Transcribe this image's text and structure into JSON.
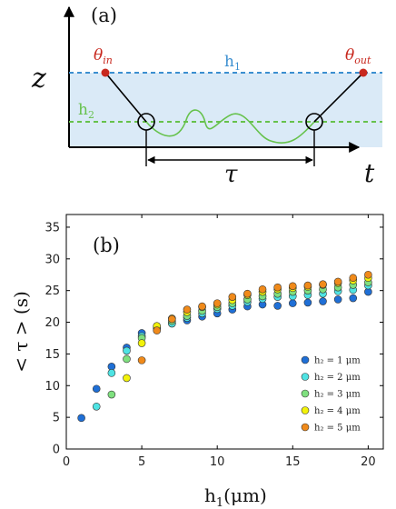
{
  "panel_a": {
    "label": "(a)",
    "z_axis_label": "z",
    "t_axis_label": "t",
    "theta_in_label": "θin",
    "theta_in_main": "θ",
    "theta_in_sub": "in",
    "theta_out_label": "θout",
    "theta_out_main": "θ",
    "theta_out_sub": "out",
    "h1_label": "h1",
    "h1_main": "h",
    "h1_sub": "1",
    "h2_label": "h2",
    "h2_main": "h",
    "h2_sub": "2",
    "tau_label": "τ",
    "colors": {
      "band_fill": "#daeaf7",
      "h1_line": "#3b8fd0",
      "h2_line": "#66c24c",
      "trajectory": "#66c24c",
      "endpoints": "#c8281e",
      "h1_text": "#3b8fd0",
      "h2_text": "#66c24c",
      "theta_text": "#c8281e"
    }
  },
  "chart_data": {
    "type": "scatter",
    "panel_label": "(b)",
    "xlabel": "h1(μm)",
    "xlabel_main": "h",
    "xlabel_sub": "1",
    "xlabel_unit": "(μm)",
    "ylabel": "< τ > (s)",
    "xlim": [
      0,
      21
    ],
    "ylim": [
      0,
      37
    ],
    "xticks": [
      0,
      5,
      10,
      15,
      20
    ],
    "yticks": [
      0,
      5,
      10,
      15,
      20,
      25,
      30,
      35
    ],
    "grid": false,
    "legend_position": "bottom-right",
    "series": [
      {
        "name": "h2 = 1 μm",
        "legend_label": "h₂ = 1 μm",
        "color": "#1f6fd6",
        "x": [
          1,
          2,
          3,
          4,
          5,
          6,
          7,
          8,
          9,
          10,
          11,
          12,
          13,
          14,
          15,
          16,
          17,
          18,
          19,
          20
        ],
        "y": [
          4.9,
          9.5,
          13.0,
          16.0,
          18.3,
          19.0,
          19.8,
          20.3,
          20.9,
          21.4,
          22.0,
          22.5,
          22.8,
          22.6,
          23.0,
          23.1,
          23.3,
          23.6,
          23.8,
          24.8
        ]
      },
      {
        "name": "h2 = 2 μm",
        "legend_label": "h₂ = 2 μm",
        "color": "#4fe3e3",
        "x": [
          2,
          3,
          4,
          5,
          6,
          7,
          8,
          9,
          10,
          11,
          12,
          13,
          14,
          15,
          16,
          17,
          18,
          19,
          20
        ],
        "y": [
          6.7,
          12.0,
          15.5,
          17.8,
          19.1,
          19.8,
          20.7,
          21.4,
          22.1,
          22.6,
          23.2,
          23.7,
          24.0,
          24.1,
          24.3,
          24.5,
          24.9,
          25.1,
          25.8
        ]
      },
      {
        "name": "h2 = 3 μm",
        "legend_label": "h₂ = 3 μm",
        "color": "#7fe07f",
        "x": [
          3,
          4,
          5,
          6,
          7,
          8,
          9,
          10,
          11,
          12,
          13,
          14,
          15,
          16,
          17,
          18,
          19,
          20
        ],
        "y": [
          8.6,
          14.2,
          17.5,
          19.3,
          20.2,
          21.0,
          21.8,
          22.4,
          23.0,
          23.6,
          24.1,
          24.5,
          24.8,
          25.0,
          25.2,
          25.5,
          25.9,
          26.3
        ]
      },
      {
        "name": "h2 = 4 μm",
        "legend_label": "h₂ = 4 μm",
        "color": "#f2f20a",
        "x": [
          4,
          5,
          6,
          7,
          8,
          9,
          10,
          11,
          12,
          13,
          14,
          15,
          16,
          17,
          18,
          19,
          20
        ],
        "y": [
          11.2,
          16.7,
          19.4,
          20.6,
          21.6,
          22.4,
          22.8,
          23.5,
          24.3,
          24.8,
          25.2,
          25.4,
          25.6,
          25.9,
          26.2,
          26.6,
          27.0
        ]
      },
      {
        "name": "h2 = 5 μm",
        "legend_label": "h₂ = 5 μm",
        "color": "#f08a1a",
        "x": [
          5,
          6,
          7,
          8,
          9,
          10,
          11,
          12,
          13,
          14,
          15,
          16,
          17,
          18,
          19,
          20
        ],
        "y": [
          14.0,
          18.7,
          20.5,
          22.0,
          22.5,
          23.0,
          24.0,
          24.5,
          25.2,
          25.5,
          25.7,
          25.8,
          26.0,
          26.4,
          27.0,
          27.5
        ]
      }
    ]
  }
}
